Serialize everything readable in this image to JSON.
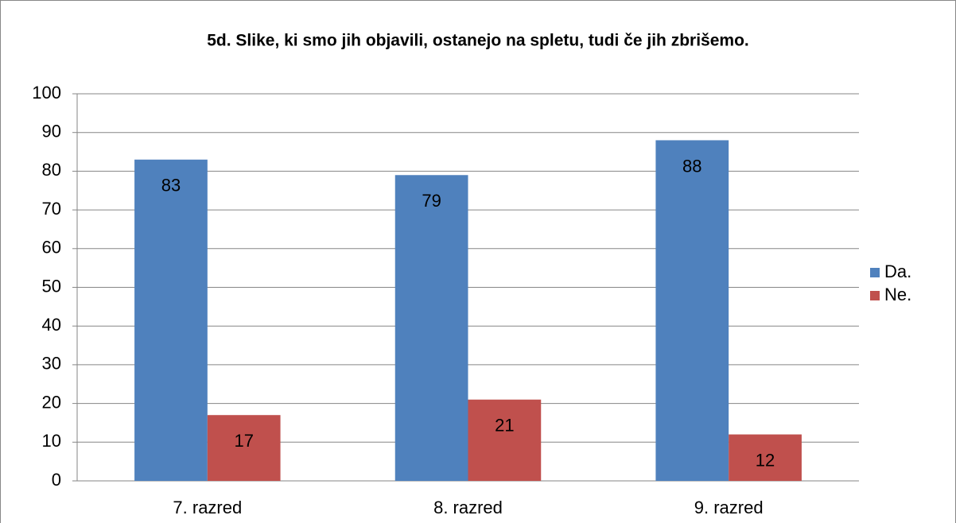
{
  "chart_data": {
    "type": "bar",
    "title": "5d. Slike, ki smo jih objavili, ostanejo na spletu, tudi če jih zbrišemo.",
    "categories": [
      "7. razred",
      "8. razred",
      "9. razred"
    ],
    "series": [
      {
        "name": "Da.",
        "color": "#4f81bd",
        "values": [
          83,
          79,
          88
        ]
      },
      {
        "name": "Ne.",
        "color": "#c0504d",
        "values": [
          17,
          21,
          12
        ]
      }
    ],
    "ylim": [
      0,
      100
    ],
    "yticks": [
      0,
      10,
      20,
      30,
      40,
      50,
      60,
      70,
      80,
      90,
      100
    ],
    "grid": true,
    "legend": "right"
  }
}
